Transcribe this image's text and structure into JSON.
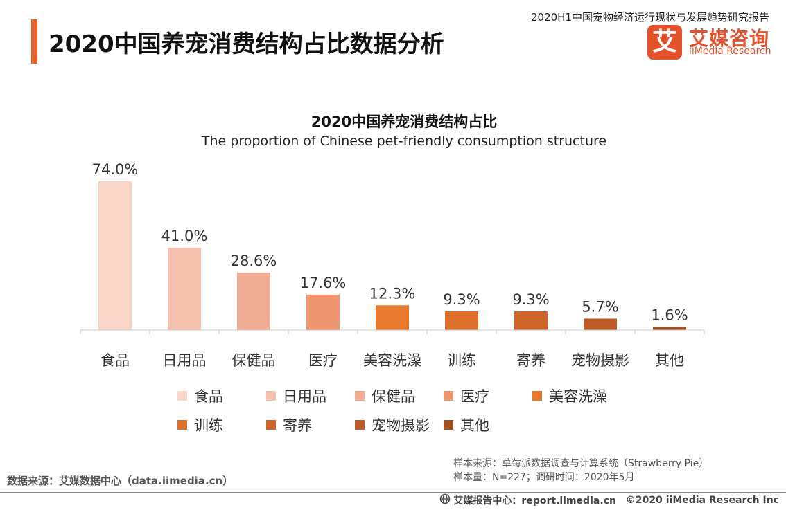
{
  "header": {
    "title": "2020中国养宠消费结构占比数据分析",
    "report_name": "2020H1中国宠物经济运行现状与发展趋势研究报告",
    "logo_mark": "艾",
    "logo_cn": "艾媒咨询",
    "logo_en": "iiMedia Research",
    "accent_color": "#e8622a"
  },
  "chart_data": {
    "type": "bar",
    "title": "2020中国养宠消费结构占比",
    "subtitle": "The proportion of Chinese pet-friendly consumption structure",
    "categories": [
      "食品",
      "日用品",
      "保健品",
      "医疗",
      "美容洗澡",
      "训练",
      "寄养",
      "宠物摄影",
      "其他"
    ],
    "values": [
      74.0,
      41.0,
      28.6,
      17.6,
      12.3,
      9.3,
      9.3,
      5.7,
      1.6
    ],
    "value_labels": [
      "74.0%",
      "41.0%",
      "28.6%",
      "17.6%",
      "12.3%",
      "9.3%",
      "9.3%",
      "5.7%",
      "1.6%"
    ],
    "colors": [
      "#f8d5c7",
      "#f5c0ad",
      "#f1ad93",
      "#ee9670",
      "#e8782c",
      "#dd6f2a",
      "#cf6529",
      "#bc5b25",
      "#a44f20"
    ],
    "legend_position": "bottom",
    "ylim": [
      0,
      74
    ],
    "grid": false
  },
  "footer": {
    "data_source": "数据来源：艾媒数据中心（data.iimedia.cn）",
    "sample_source": "样本来源：草莓派数据调查与计算系统（Strawberry Pie）",
    "sample_size": "样本量：N=227；调研时间：2020年5月",
    "report_center": "艾媒报告中心：report.iimedia.cn",
    "copyright": "©2020  iiMedia Research  Inc"
  }
}
